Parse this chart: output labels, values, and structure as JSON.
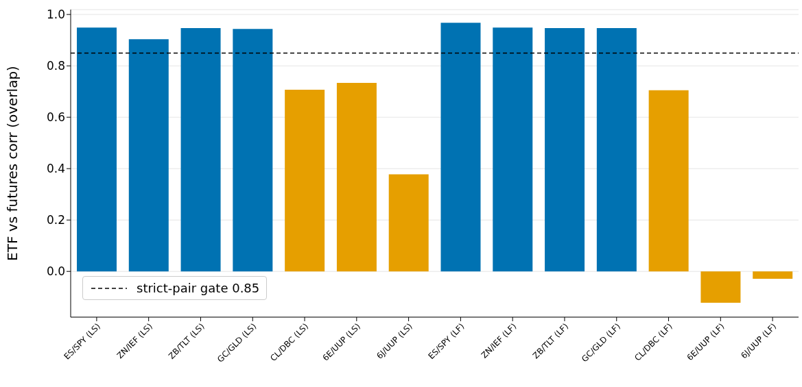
{
  "chart_data": {
    "type": "bar",
    "ylabel": "ETF vs futures corr (overlap)",
    "categories": [
      "ES/SPY (LS)",
      "ZN/IEF (LS)",
      "ZB/TLT (LS)",
      "GC/GLD (LS)",
      "CL/DBC (LS)",
      "6E/UUP (LS)",
      "6J/UUP (LS)",
      "ES/SPY (LF)",
      "ZN/IEF (LF)",
      "ZB/TLT (LF)",
      "GC/GLD (LF)",
      "CL/DBC (LF)",
      "6E/UUP (LF)",
      "6J/UUP (LF)"
    ],
    "values": [
      0.949,
      0.904,
      0.947,
      0.944,
      0.707,
      0.734,
      0.378,
      0.968,
      0.949,
      0.947,
      0.947,
      0.705,
      -0.122,
      -0.029
    ],
    "colors": [
      "#0072b2",
      "#0072b2",
      "#0072b2",
      "#0072b2",
      "#e69f00",
      "#e69f00",
      "#e69f00",
      "#0072b2",
      "#0072b2",
      "#0072b2",
      "#0072b2",
      "#e69f00",
      "#e69f00",
      "#e69f00"
    ],
    "ylim": [
      -0.178,
      1.019
    ],
    "yticks": [
      {
        "value": 0,
        "label": "0.0"
      },
      0.2,
      0.4,
      0.6,
      0.8,
      {
        "value": 1,
        "label": "1.0"
      }
    ],
    "grid": "y",
    "legend": "bottom left",
    "ref_lines": [
      {
        "axis": "y",
        "value": 0.85,
        "label": "strict-pair gate 0.85",
        "color": "#000000",
        "line_style": "dashed"
      }
    ]
  }
}
